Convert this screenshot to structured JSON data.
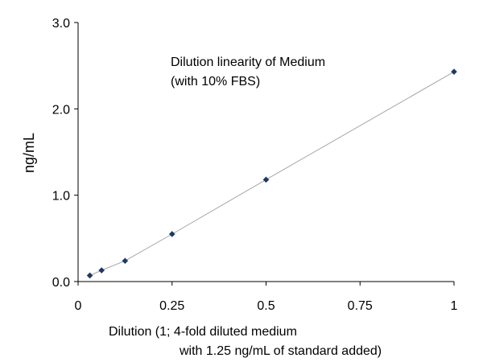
{
  "chart_data": {
    "type": "scatter",
    "title": "",
    "annotation_lines": [
      "Dilution linearity of Medium",
      "(with 10% FBS)"
    ],
    "xlabel_lines": [
      "Dilution (1; 4-fold diluted medium",
      "with 1.25 ng/mL of standard added)"
    ],
    "ylabel": "ng/mL",
    "xlim": [
      0,
      1
    ],
    "ylim": [
      0,
      3.0
    ],
    "x_ticks": [
      0,
      0.25,
      0.5,
      0.75,
      1
    ],
    "x_tick_labels": [
      "0",
      "0.25",
      "0.5",
      "0.75",
      "1"
    ],
    "y_ticks": [
      0,
      1,
      2,
      3
    ],
    "y_tick_labels": [
      "0.0",
      "1.0",
      "2.0",
      "3.0"
    ],
    "grid": false,
    "legend": "none",
    "series": [
      {
        "marker": "diamond",
        "line": true,
        "x": [
          0.03125,
          0.0625,
          0.125,
          0.25,
          0.5,
          1
        ],
        "y": [
          0.07,
          0.13,
          0.24,
          0.55,
          1.18,
          2.43
        ]
      }
    ],
    "colors": {
      "marker": "#1f3864",
      "line": "#a6a6a6",
      "axis": "#000000"
    }
  }
}
